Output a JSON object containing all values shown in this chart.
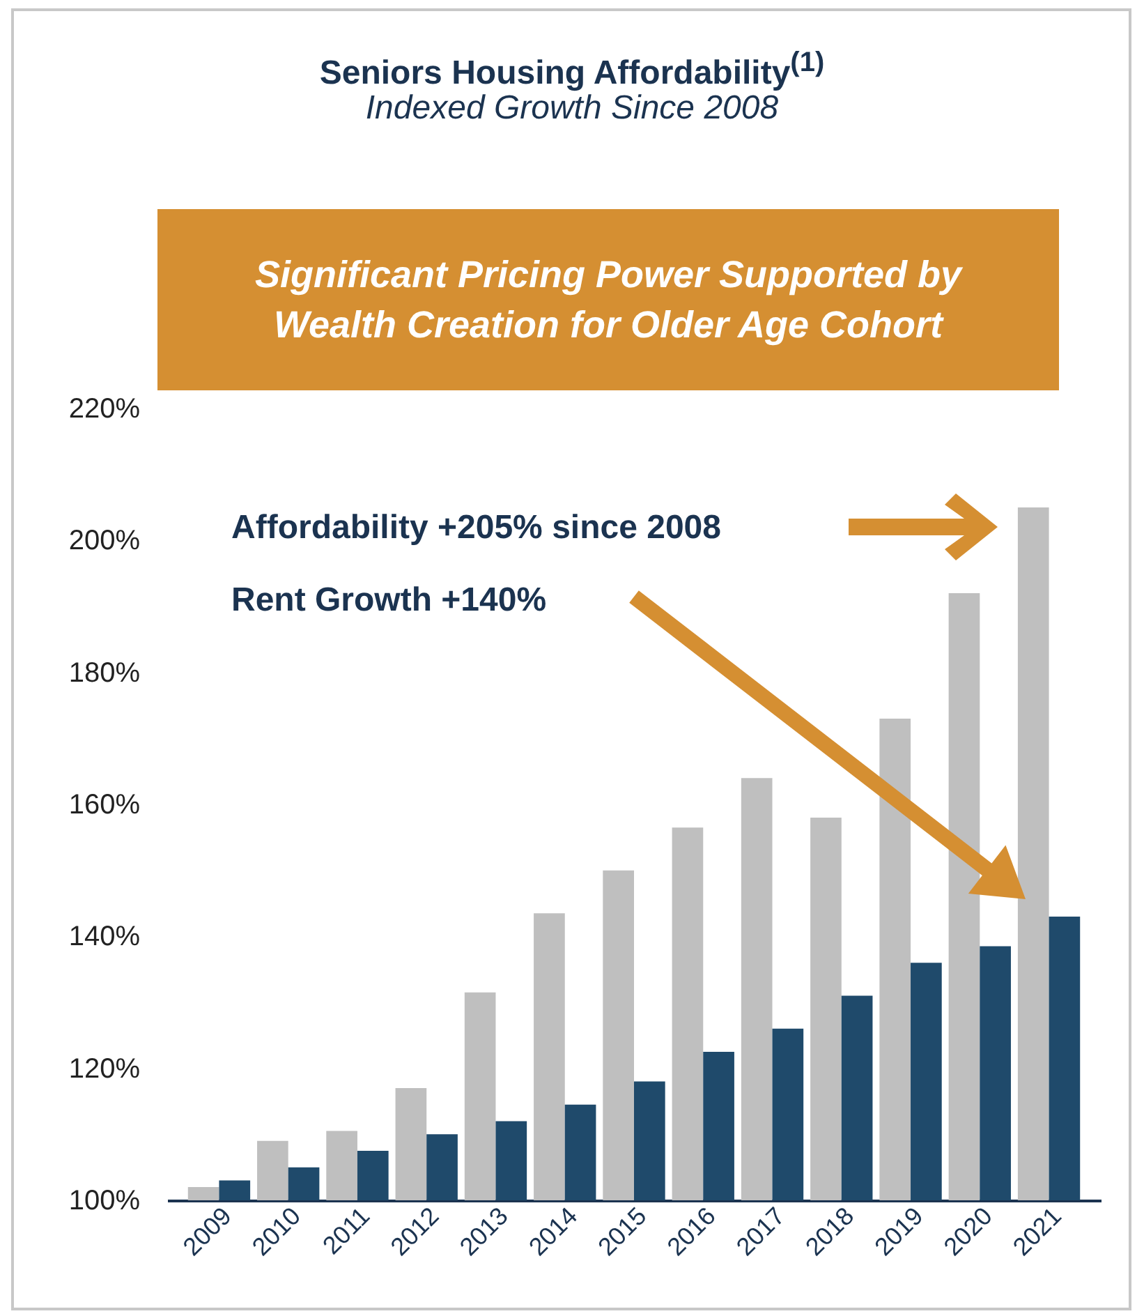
{
  "chart_data": {
    "type": "bar",
    "title": "Seniors Housing Affordability$^{(1)}$",
    "subtitle": "Indexed Growth Since 2008",
    "categories": [
      "2009",
      "2010",
      "2011",
      "2012",
      "2013",
      "2014",
      "2015",
      "2016",
      "2017",
      "2018",
      "2019",
      "2020",
      "2021"
    ],
    "series": [
      {
        "color": "#bfbfbf",
        "values": [
          102,
          109,
          110.5,
          117,
          131.5,
          143.5,
          150,
          156.5,
          164,
          158,
          173,
          192,
          205
        ]
      },
      {
        "color": "#1f4a6b",
        "values": [
          103,
          105,
          107.5,
          110,
          112,
          114.5,
          118,
          122.5,
          126,
          131,
          136,
          138.5,
          143
        ]
      }
    ],
    "ylim": [
      100,
      220
    ],
    "yticks": [
      {
        "value": 100,
        "label": "100%"
      },
      {
        "value": 120,
        "label": "120%"
      },
      {
        "value": 140,
        "label": "140%"
      },
      {
        "value": 160,
        "label": "160%"
      },
      {
        "value": 180,
        "label": "180%"
      },
      {
        "value": 200,
        "label": "200%"
      },
      {
        "value": 220,
        "label": "220%"
      }
    ],
    "annotations": [
      "Significant Pricing Power Supported by Wealth Creation for Older Age Cohort",
      "Affordability +205% since 2008",
      "Rent Growth +140%"
    ]
  }
}
